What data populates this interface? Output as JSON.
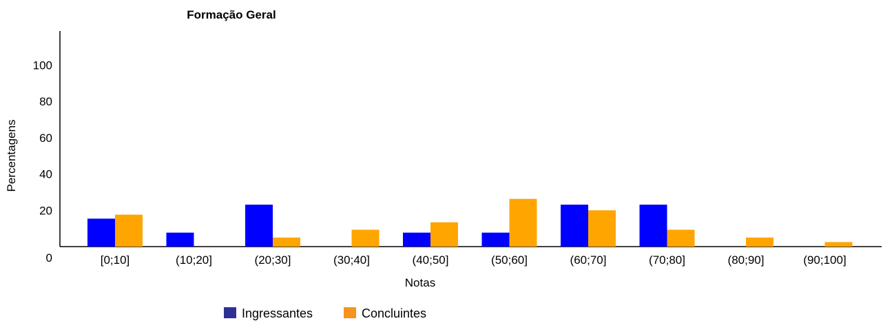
{
  "chart_data": {
    "type": "bar",
    "title": "Formação Geral",
    "xlabel": "Notas",
    "ylabel": "Percentagens",
    "categories": [
      "[0;10]",
      "(10;20]",
      "(20;30]",
      "(30;40]",
      "(40;50]",
      "(50;60]",
      "(60;70]",
      "(70;80]",
      "(80;90]",
      "(90;100]"
    ],
    "series": [
      {
        "name": "Ingressantes",
        "color": "#0000ff",
        "values": [
          15.4,
          7.7,
          23.1,
          0,
          7.7,
          7.7,
          23.1,
          23.1,
          0,
          0
        ]
      },
      {
        "name": "Concluintes",
        "color": "#ffa500",
        "values": [
          17.6,
          0,
          5.0,
          9.3,
          13.4,
          26.3,
          20.0,
          9.3,
          5.0,
          2.5
        ]
      }
    ],
    "ylim": [
      0,
      120
    ],
    "yticks": [
      0,
      20,
      40,
      60,
      80,
      100
    ],
    "grid": false,
    "legend": "bottom"
  },
  "legend": {
    "items": [
      {
        "label": "Ingressantes",
        "color": "#2e3192"
      },
      {
        "label": "Concluintes",
        "color": "#f7931e"
      }
    ]
  }
}
